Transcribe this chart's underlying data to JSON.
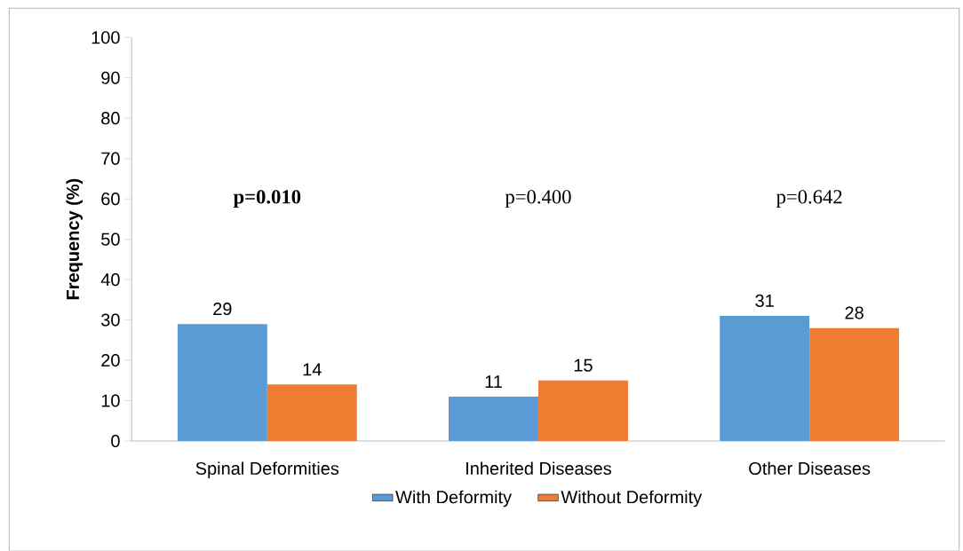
{
  "chart_data": {
    "type": "bar",
    "ylabel": "Frequency  (%)",
    "categories": [
      "Spinal Deformities",
      "Inherited Diseases",
      "Other Diseases"
    ],
    "series": [
      {
        "name": "With Deformity",
        "color": "#5b9bd5",
        "values": [
          29,
          11,
          31
        ]
      },
      {
        "name": "Without Deformity",
        "color": "#ed7d31",
        "values": [
          14,
          15,
          28
        ]
      }
    ],
    "ylim": [
      0,
      100
    ],
    "yticks": [
      0,
      10,
      20,
      30,
      40,
      50,
      60,
      70,
      80,
      90,
      100
    ],
    "data_labels": true,
    "grid": false,
    "legend": "bottom",
    "annotations": [
      "**p=0.010**",
      "p=0.400",
      "p=0.642"
    ]
  }
}
